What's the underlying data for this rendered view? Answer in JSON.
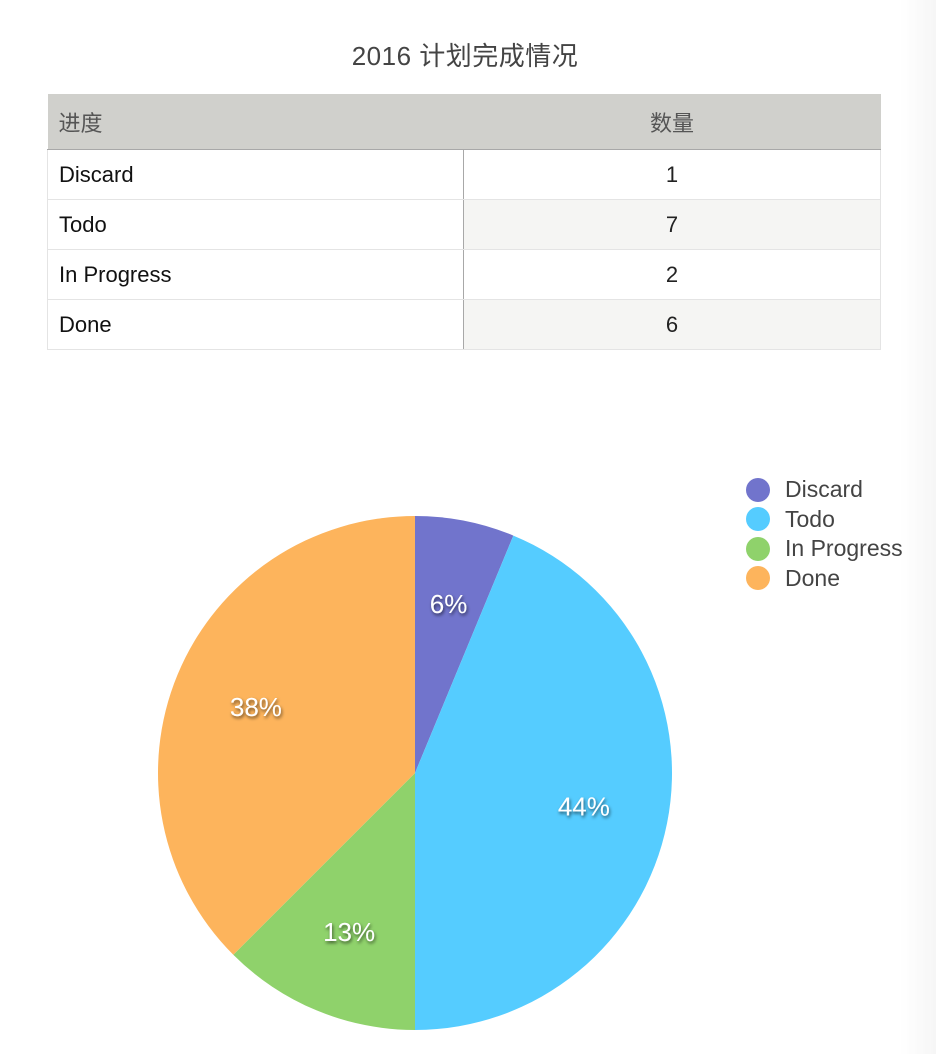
{
  "title": "2016 计划完成情况",
  "table": {
    "headers": [
      "进度",
      "数量"
    ],
    "rows": [
      {
        "label": "Discard",
        "value": "1"
      },
      {
        "label": "Todo",
        "value": "7"
      },
      {
        "label": "In Progress",
        "value": "2"
      },
      {
        "label": "Done",
        "value": "6"
      }
    ]
  },
  "legend": [
    {
      "label": "Discard",
      "color": "#7174cc"
    },
    {
      "label": "Todo",
      "color": "#55ccff"
    },
    {
      "label": "In Progress",
      "color": "#8fd26b"
    },
    {
      "label": "Done",
      "color": "#fdb45c"
    }
  ],
  "chart_data": {
    "type": "pie",
    "title": "2016 计划完成情况",
    "categories": [
      "Discard",
      "Todo",
      "In Progress",
      "Done"
    ],
    "values": [
      1,
      7,
      2,
      6
    ],
    "percent_labels": [
      "6%",
      "44%",
      "13%",
      "38%"
    ],
    "colors": [
      "#7174cc",
      "#55ccff",
      "#8fd26b",
      "#fdb45c"
    ],
    "start_angle": "12 o'clock",
    "direction": "clockwise",
    "legend_position": "top-right"
  }
}
